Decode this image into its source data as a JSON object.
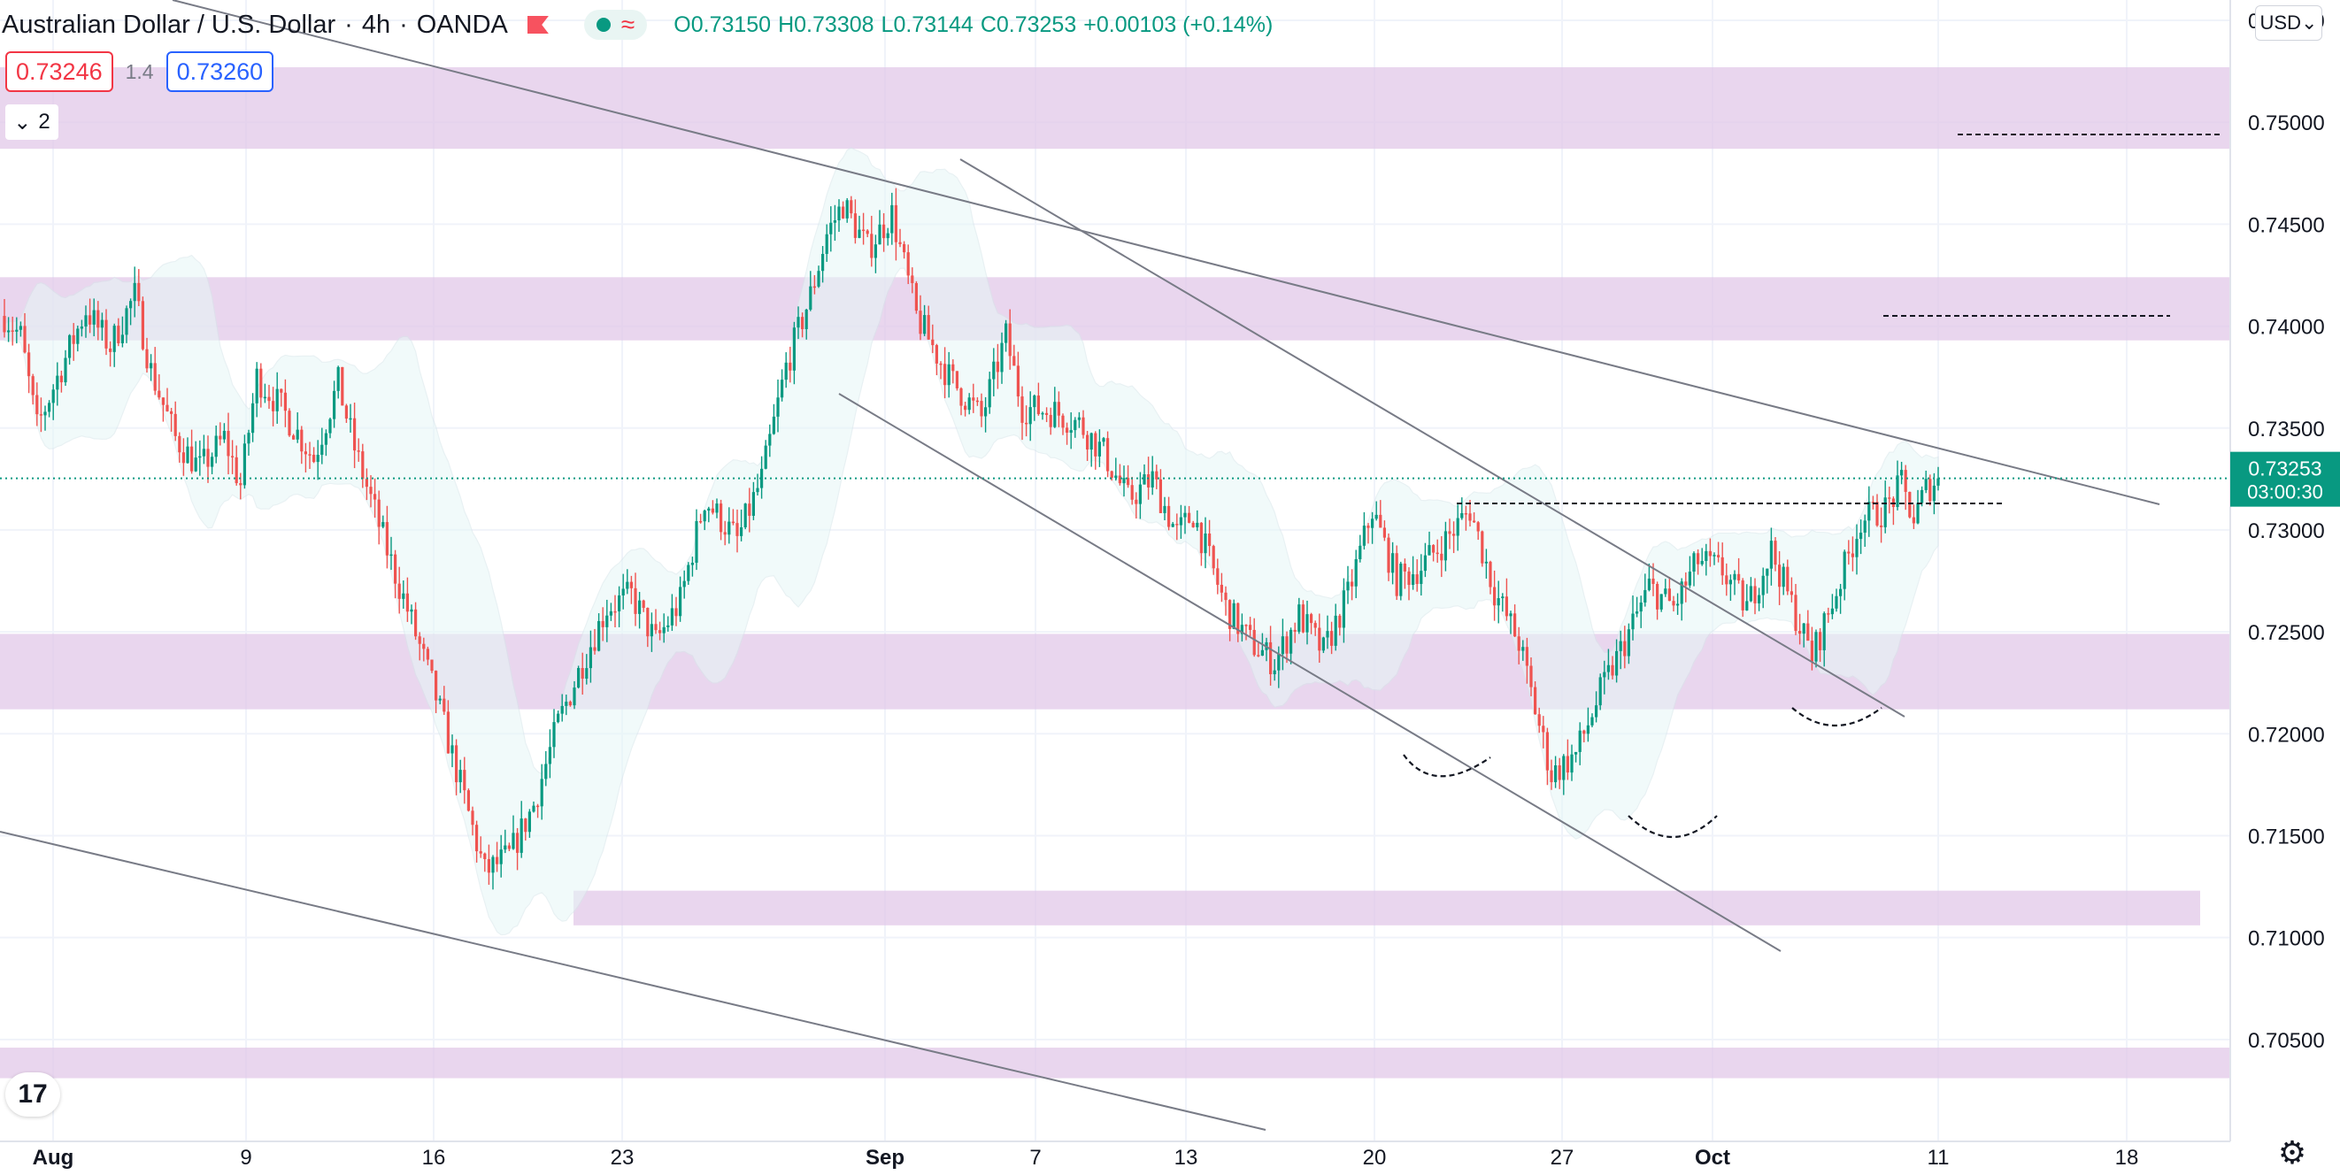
{
  "header": {
    "symbol": "Australian Dollar / U.S. Dollar",
    "interval": "4h",
    "exchange": "OANDA",
    "ohlc": {
      "o_label": "O",
      "o": "0.73150",
      "h_label": "H",
      "h": "0.73308",
      "l_label": "L",
      "l": "0.73144",
      "c_label": "C",
      "c": "0.73253",
      "change": "+0.00103 (+0.14%)"
    },
    "sell_price": "0.73246",
    "spread": "1.4",
    "buy_price": "0.73260",
    "indicators_count": "2"
  },
  "currency_button": "USD",
  "last_price_label": "0.73253",
  "countdown": "03:00:30",
  "colors": {
    "up": "#089981",
    "down": "#ef5350",
    "zone": "#e1c6e8",
    "band": "#e6f7f7"
  },
  "chart_data": {
    "type": "candlestick",
    "symbol": "AUDUSD",
    "timeframe": "4h",
    "y_axis": {
      "min": 0.7,
      "max": 0.756,
      "ticks": [
        "0.70500",
        "0.71000",
        "0.71500",
        "0.72000",
        "0.72500",
        "0.73000",
        "0.73500",
        "0.74000",
        "0.74500",
        "0.75000",
        "0.75500"
      ]
    },
    "x_axis": {
      "ticks": [
        "Aug",
        "9",
        "16",
        "23",
        "Sep",
        "7",
        "13",
        "20",
        "27",
        "Oct",
        "11",
        "18"
      ]
    },
    "last_price": 0.73253,
    "anchors": [
      {
        "t": 0,
        "p": 0.7405
      },
      {
        "t": 4,
        "p": 0.7395
      },
      {
        "t": 8,
        "p": 0.735
      },
      {
        "t": 12,
        "p": 0.737
      },
      {
        "t": 20,
        "p": 0.7408
      },
      {
        "t": 26,
        "p": 0.739
      },
      {
        "t": 32,
        "p": 0.7415
      },
      {
        "t": 36,
        "p": 0.7378
      },
      {
        "t": 42,
        "p": 0.7345
      },
      {
        "t": 48,
        "p": 0.733
      },
      {
        "t": 54,
        "p": 0.7345
      },
      {
        "t": 58,
        "p": 0.7322
      },
      {
        "t": 62,
        "p": 0.7375
      },
      {
        "t": 68,
        "p": 0.736
      },
      {
        "t": 76,
        "p": 0.7335
      },
      {
        "t": 82,
        "p": 0.7372
      },
      {
        "t": 86,
        "p": 0.734
      },
      {
        "t": 94,
        "p": 0.729
      },
      {
        "t": 100,
        "p": 0.7255
      },
      {
        "t": 106,
        "p": 0.7218
      },
      {
        "t": 112,
        "p": 0.7175
      },
      {
        "t": 118,
        "p": 0.7132
      },
      {
        "t": 124,
        "p": 0.714
      },
      {
        "t": 130,
        "p": 0.7165
      },
      {
        "t": 136,
        "p": 0.7205
      },
      {
        "t": 142,
        "p": 0.7235
      },
      {
        "t": 148,
        "p": 0.7262
      },
      {
        "t": 154,
        "p": 0.7268
      },
      {
        "t": 160,
        "p": 0.7245
      },
      {
        "t": 166,
        "p": 0.7265
      },
      {
        "t": 172,
        "p": 0.7315
      },
      {
        "t": 176,
        "p": 0.7305
      },
      {
        "t": 180,
        "p": 0.7295
      },
      {
        "t": 186,
        "p": 0.7325
      },
      {
        "t": 192,
        "p": 0.738
      },
      {
        "t": 198,
        "p": 0.7415
      },
      {
        "t": 202,
        "p": 0.7445
      },
      {
        "t": 206,
        "p": 0.746
      },
      {
        "t": 212,
        "p": 0.7438
      },
      {
        "t": 218,
        "p": 0.7455
      },
      {
        "t": 224,
        "p": 0.7405
      },
      {
        "t": 232,
        "p": 0.7375
      },
      {
        "t": 240,
        "p": 0.7355
      },
      {
        "t": 246,
        "p": 0.7395
      },
      {
        "t": 250,
        "p": 0.736
      },
      {
        "t": 258,
        "p": 0.7358
      },
      {
        "t": 264,
        "p": 0.7352
      },
      {
        "t": 270,
        "p": 0.7338
      },
      {
        "t": 276,
        "p": 0.7315
      },
      {
        "t": 282,
        "p": 0.7325
      },
      {
        "t": 288,
        "p": 0.7298
      },
      {
        "t": 292,
        "p": 0.7308
      },
      {
        "t": 300,
        "p": 0.7262
      },
      {
        "t": 306,
        "p": 0.7245
      },
      {
        "t": 312,
        "p": 0.7235
      },
      {
        "t": 318,
        "p": 0.7258
      },
      {
        "t": 324,
        "p": 0.724
      },
      {
        "t": 330,
        "p": 0.7268
      },
      {
        "t": 336,
        "p": 0.731
      },
      {
        "t": 342,
        "p": 0.7275
      },
      {
        "t": 348,
        "p": 0.7282
      },
      {
        "t": 354,
        "p": 0.7295
      },
      {
        "t": 360,
        "p": 0.731
      },
      {
        "t": 366,
        "p": 0.727
      },
      {
        "t": 372,
        "p": 0.7245
      },
      {
        "t": 376,
        "p": 0.7212
      },
      {
        "t": 380,
        "p": 0.718
      },
      {
        "t": 386,
        "p": 0.719
      },
      {
        "t": 392,
        "p": 0.722
      },
      {
        "t": 398,
        "p": 0.7245
      },
      {
        "t": 404,
        "p": 0.7272
      },
      {
        "t": 410,
        "p": 0.7262
      },
      {
        "t": 416,
        "p": 0.7285
      },
      {
        "t": 422,
        "p": 0.728
      },
      {
        "t": 428,
        "p": 0.7262
      },
      {
        "t": 434,
        "p": 0.729
      },
      {
        "t": 440,
        "p": 0.7258
      },
      {
        "t": 444,
        "p": 0.7238
      },
      {
        "t": 450,
        "p": 0.727
      },
      {
        "t": 456,
        "p": 0.7305
      },
      {
        "t": 462,
        "p": 0.731
      },
      {
        "t": 466,
        "p": 0.7322
      },
      {
        "t": 469,
        "p": 0.7305
      },
      {
        "t": 472,
        "p": 0.732
      },
      {
        "t": 475,
        "p": 0.73253
      }
    ],
    "zones": [
      {
        "from": 0.7487,
        "to": 0.7527
      },
      {
        "from": 0.7393,
        "to": 0.7424
      },
      {
        "from": 0.7212,
        "to": 0.7249
      },
      {
        "from": 0.7106,
        "to": 0.7123
      },
      {
        "from": 0.7031,
        "to": 0.7046
      }
    ],
    "levels": [
      {
        "price": 0.7493,
        "style": "dashed"
      },
      {
        "price": 0.7406,
        "style": "dashed"
      },
      {
        "price": 0.7313,
        "style": "dashed"
      }
    ]
  }
}
